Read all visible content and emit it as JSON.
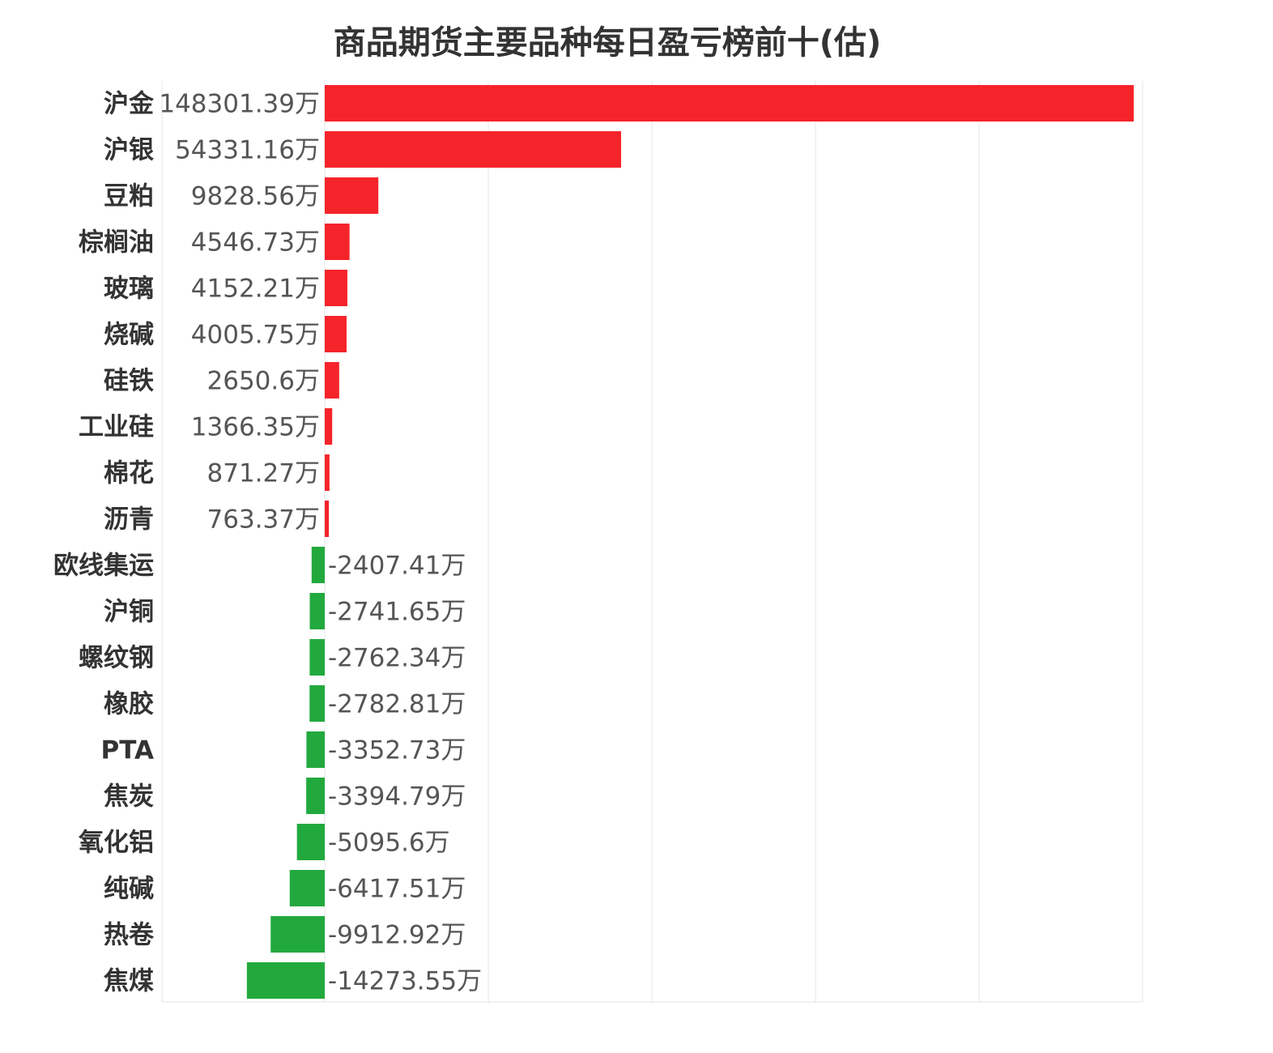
{
  "chart_data": {
    "type": "bar",
    "orientation": "horizontal",
    "title": "商品期货主要品种每日盈亏榜前十(估)",
    "unit_suffix": "万",
    "categories": [
      "沪金",
      "沪银",
      "豆粕",
      "棕榈油",
      "玻璃",
      "烧碱",
      "硅铁",
      "工业硅",
      "棉花",
      "沥青",
      "欧线集运",
      "沪铜",
      "螺纹钢",
      "橡胶",
      "PTA",
      "焦炭",
      "氧化铝",
      "纯碱",
      "热卷",
      "焦煤"
    ],
    "values": [
      148301.39,
      54331.16,
      9828.56,
      4546.73,
      4152.21,
      4005.75,
      2650.6,
      1366.35,
      871.27,
      763.37,
      -2407.41,
      -2741.65,
      -2762.34,
      -2782.81,
      -3352.73,
      -3394.79,
      -5095.6,
      -6417.51,
      -9912.92,
      -14273.55
    ],
    "value_labels": [
      "148301.39万",
      "54331.16万",
      "9828.56万",
      "4546.73万",
      "4152.21万",
      "4005.75万",
      "2650.6万",
      "1366.35万",
      "871.27万",
      "763.37万",
      "-2407.41万",
      "-2741.65万",
      "-2762.34万",
      "-2782.81万",
      "-3352.73万",
      "-3394.79万",
      "-5095.6万",
      "-6417.51万",
      "-9912.92万",
      "-14273.55万"
    ],
    "xlim": [
      -30000,
      150000
    ],
    "grid": true,
    "legend": "none",
    "colors": {
      "positive": "#f5242a",
      "negative": "#22a93e",
      "grid": "#e6e6e6"
    }
  }
}
